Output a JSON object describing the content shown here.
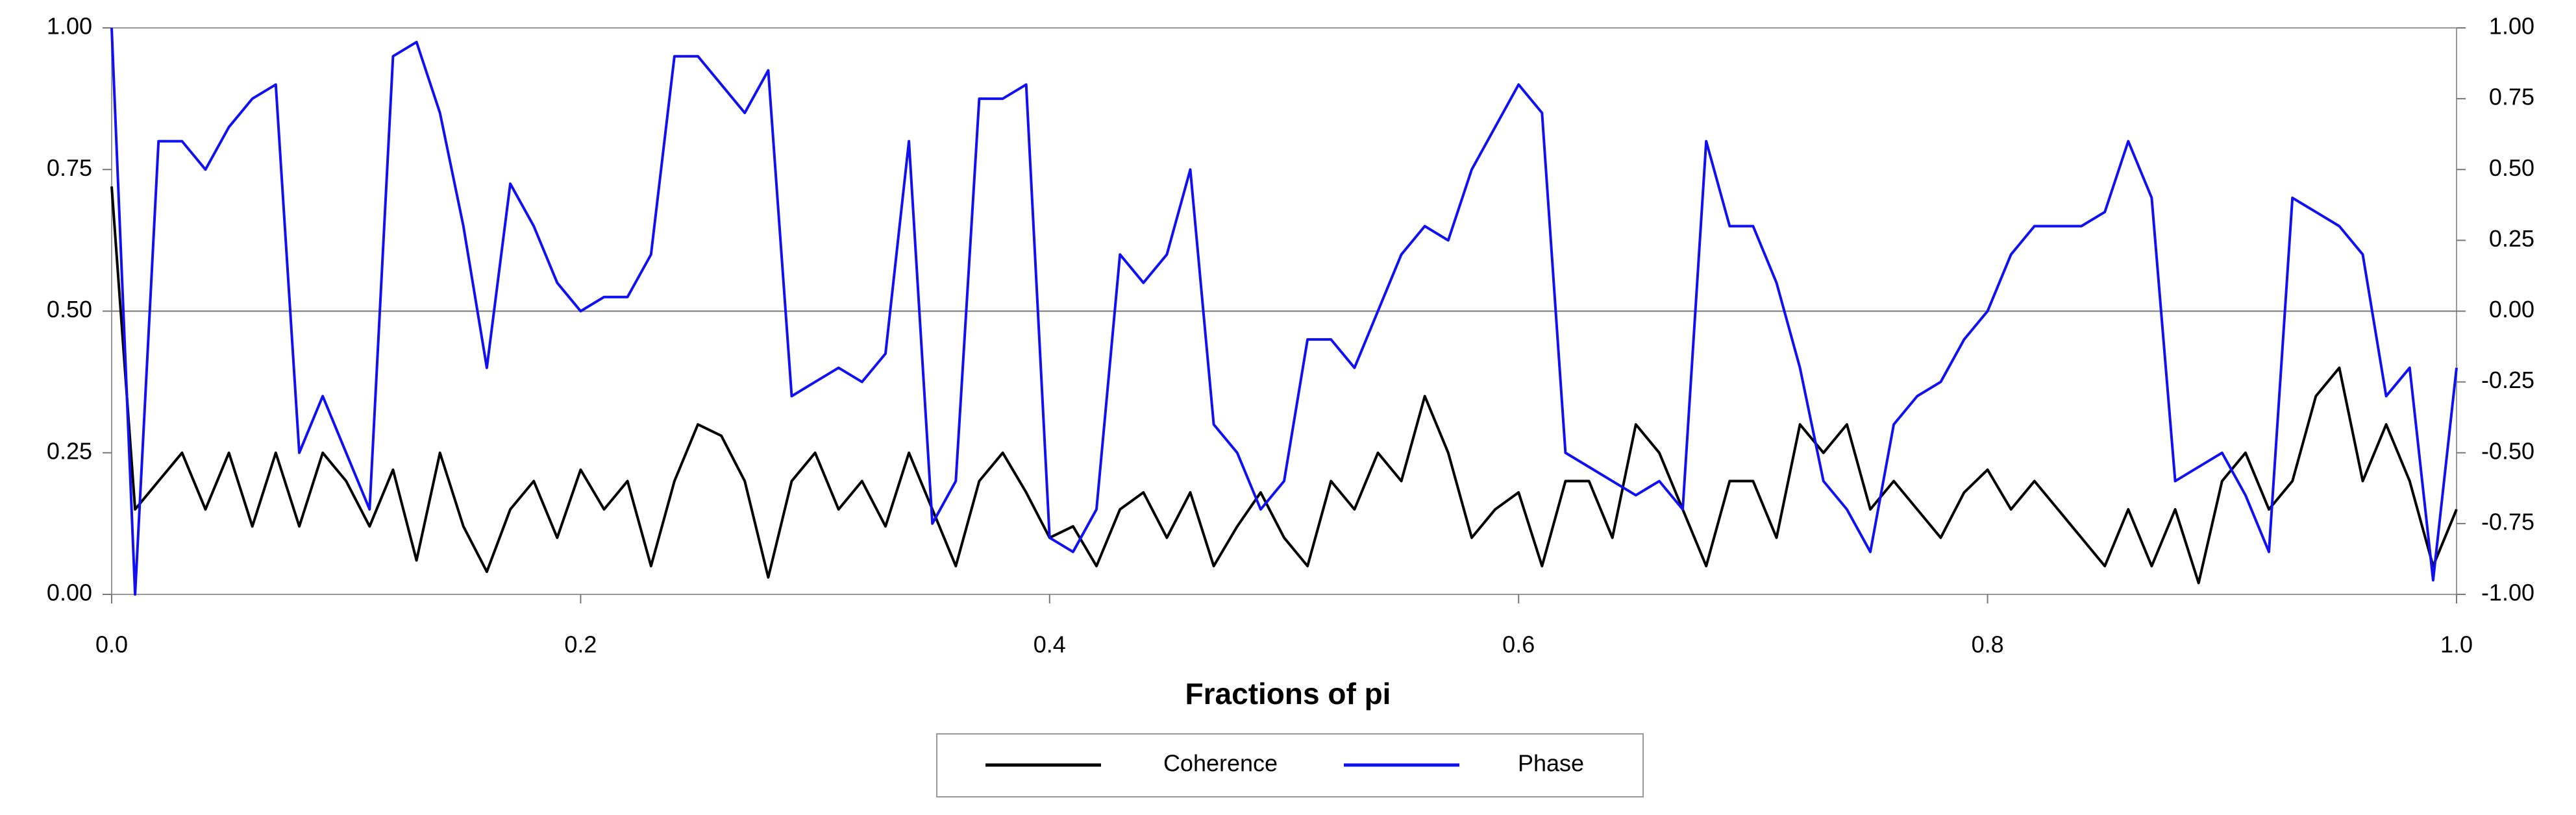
{
  "chart_data": {
    "type": "line",
    "xlabel": "Fractions of pi",
    "x": [
      0,
      0.01,
      0.02,
      0.03,
      0.04,
      0.05,
      0.06,
      0.07,
      0.08,
      0.09,
      0.1,
      0.11,
      0.12,
      0.13,
      0.14,
      0.15,
      0.16,
      0.17,
      0.18,
      0.19,
      0.2,
      0.21,
      0.22,
      0.23,
      0.24,
      0.25,
      0.26,
      0.27,
      0.28,
      0.29,
      0.3,
      0.31,
      0.32,
      0.33,
      0.34,
      0.35,
      0.36,
      0.37,
      0.38,
      0.39,
      0.4,
      0.41,
      0.42,
      0.43,
      0.44,
      0.45,
      0.46,
      0.47,
      0.48,
      0.49,
      0.5,
      0.51,
      0.52,
      0.53,
      0.54,
      0.55,
      0.56,
      0.57,
      0.58,
      0.59,
      0.6,
      0.61,
      0.62,
      0.63,
      0.64,
      0.65,
      0.66,
      0.67,
      0.68,
      0.69,
      0.7,
      0.71,
      0.72,
      0.73,
      0.74,
      0.75,
      0.76,
      0.77,
      0.78,
      0.79,
      0.8,
      0.81,
      0.82,
      0.83,
      0.84,
      0.85,
      0.86,
      0.87,
      0.88,
      0.89,
      0.9,
      0.91,
      0.92,
      0.93,
      0.94,
      0.95,
      0.96,
      0.97,
      0.98,
      0.99,
      1
    ],
    "series": [
      {
        "name": "Coherence",
        "color": "#000000",
        "axis": "y",
        "values": [
          0.72,
          0.15,
          0.2,
          0.25,
          0.15,
          0.25,
          0.12,
          0.25,
          0.12,
          0.25,
          0.2,
          0.12,
          0.22,
          0.06,
          0.25,
          0.12,
          0.04,
          0.15,
          0.2,
          0.1,
          0.22,
          0.15,
          0.2,
          0.05,
          0.2,
          0.3,
          0.28,
          0.2,
          0.03,
          0.2,
          0.25,
          0.15,
          0.2,
          0.12,
          0.25,
          0.15,
          0.05,
          0.2,
          0.25,
          0.18,
          0.1,
          0.12,
          0.05,
          0.15,
          0.18,
          0.1,
          0.18,
          0.05,
          0.12,
          0.18,
          0.1,
          0.05,
          0.2,
          0.15,
          0.25,
          0.2,
          0.35,
          0.25,
          0.1,
          0.15,
          0.18,
          0.05,
          0.2,
          0.2,
          0.1,
          0.3,
          0.25,
          0.15,
          0.05,
          0.2,
          0.2,
          0.1,
          0.3,
          0.25,
          0.3,
          0.15,
          0.2,
          0.15,
          0.1,
          0.18,
          0.22,
          0.15,
          0.2,
          0.15,
          0.1,
          0.05,
          0.15,
          0.05,
          0.15,
          0.02,
          0.2,
          0.25,
          0.15,
          0.2,
          0.35,
          0.4,
          0.2,
          0.3,
          0.2,
          0.05,
          0.15
        ]
      },
      {
        "name": "Phase",
        "color": "#1010f0",
        "axis": "y2",
        "values": [
          1,
          -1,
          0.6,
          0.6,
          0.5,
          0.65,
          0.75,
          0.8,
          -0.5,
          -0.3,
          -0.5,
          -0.7,
          0.9,
          0.95,
          0.7,
          0.3,
          -0.2,
          0.45,
          0.3,
          0.1,
          0,
          0.05,
          0.05,
          0.2,
          0.9,
          0.9,
          0.8,
          0.7,
          0.85,
          -0.3,
          -0.25,
          -0.2,
          -0.25,
          -0.15,
          0.6,
          -0.75,
          -0.6,
          0.75,
          0.75,
          0.8,
          -0.8,
          -0.85,
          -0.7,
          0.2,
          0.1,
          0.2,
          0.5,
          -0.4,
          -0.5,
          -0.7,
          -0.6,
          -0.1,
          -0.1,
          -0.2,
          0,
          0.2,
          0.3,
          0.25,
          0.5,
          0.65,
          0.8,
          0.7,
          -0.5,
          -0.55,
          -0.6,
          -0.65,
          -0.6,
          -0.7,
          0.6,
          0.3,
          0.3,
          0.1,
          -0.2,
          -0.6,
          -0.7,
          -0.85,
          -0.4,
          -0.3,
          -0.25,
          -0.1,
          0,
          0.2,
          0.3,
          0.3,
          0.3,
          0.35,
          0.6,
          0.4,
          -0.6,
          -0.55,
          -0.5,
          -0.65,
          -0.85,
          0.4,
          0.35,
          0.3,
          0.2,
          -0.3,
          -0.2,
          -0.95,
          -0.2
        ]
      }
    ],
    "xlim": [
      0,
      1
    ],
    "xticks": [
      {
        "value": 0,
        "label": "0.0"
      },
      0.2,
      0.4,
      0.6,
      0.8,
      {
        "value": 1,
        "label": "1.0"
      }
    ],
    "ylim": [
      0,
      1
    ],
    "yticks": [
      {
        "value": 0,
        "label": "0.00"
      },
      {
        "value": 0.25,
        "label": "0.25"
      },
      {
        "value": 0.5,
        "label": "0.50"
      },
      {
        "value": 0.75,
        "label": "0.75"
      },
      {
        "value": 1,
        "label": "1.00"
      }
    ],
    "y2lim": [
      -1,
      1
    ],
    "y2ticks": [
      {
        "value": -1,
        "label": "-1.00"
      },
      {
        "value": -0.75,
        "label": "-0.75"
      },
      {
        "value": -0.5,
        "label": "-0.50"
      },
      {
        "value": -0.25,
        "label": "-0.25"
      },
      {
        "value": 0,
        "label": "0.00"
      },
      {
        "value": 0.25,
        "label": "0.25"
      },
      {
        "value": 0.5,
        "label": "0.50"
      },
      {
        "value": 0.75,
        "label": "0.75"
      },
      {
        "value": 1,
        "label": "1.00"
      }
    ],
    "reference_line": 0.5,
    "legend": "bottom"
  }
}
